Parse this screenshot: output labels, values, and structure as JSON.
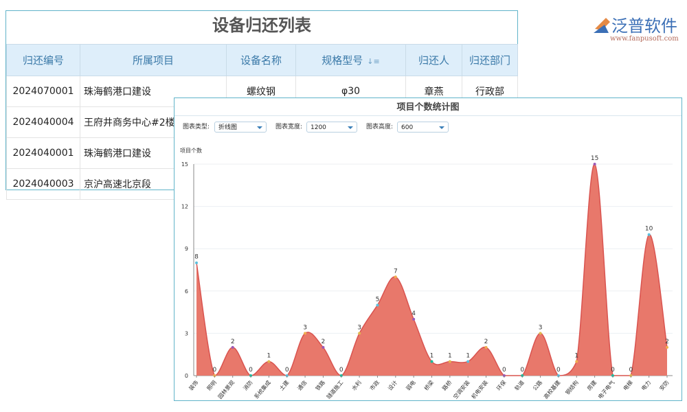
{
  "table": {
    "title": "设备归还列表",
    "columns": [
      "归还编号",
      "所属项目",
      "设备名称",
      "规格型号",
      "归还人",
      "归还部门"
    ],
    "sort_icon": "sort-icon",
    "rows": [
      [
        "2024070001",
        "珠海鹤港口建设",
        "螺纹钢",
        "φ30",
        "章燕",
        "行政部"
      ],
      [
        "2024040004",
        "王府井商务中心#2楼",
        "",
        "",
        "",
        ""
      ],
      [
        "2024040001",
        "珠海鹤港口建设",
        "",
        "",
        "",
        ""
      ],
      [
        "2024040003",
        "京沪高速北京段",
        "",
        "",
        "",
        ""
      ]
    ]
  },
  "chart_panel": {
    "title": "项目个数统计图",
    "controls": [
      {
        "label": "图表类型:",
        "value": "折线图"
      },
      {
        "label": "图表宽度:",
        "value": "1200"
      },
      {
        "label": "图表高度:",
        "value": "600"
      }
    ]
  },
  "chart_data": {
    "type": "area",
    "smooth": true,
    "ylabel": "项目个数",
    "ylim": [
      0,
      15
    ],
    "yticks": [
      0,
      3,
      6,
      9,
      12,
      15
    ],
    "grid": true,
    "categories": [
      "装饰",
      "照明",
      "园林景观",
      "消防",
      "系统集成",
      "土建",
      "通信",
      "铁路",
      "隧道施工",
      "水利",
      "市政",
      "设计",
      "弱电",
      "桥梁",
      "路桥",
      "空调安装",
      "机电安装",
      "环保",
      "轨道",
      "公路",
      "高校基建",
      "钢结构",
      "房建",
      "电子电气",
      "电梯",
      "电力",
      "安防"
    ],
    "values": [
      8,
      0,
      2,
      0,
      1,
      0,
      3,
      2,
      0,
      3,
      5,
      7,
      4,
      1,
      1,
      1,
      2,
      0,
      0,
      3,
      0,
      1,
      15,
      0,
      0,
      10,
      2
    ],
    "colors": {
      "fill": "#e8786b",
      "line": "#d9534f"
    }
  },
  "watermark": {
    "brand": "泛普软件",
    "url": "www.fanpusoft.com"
  }
}
